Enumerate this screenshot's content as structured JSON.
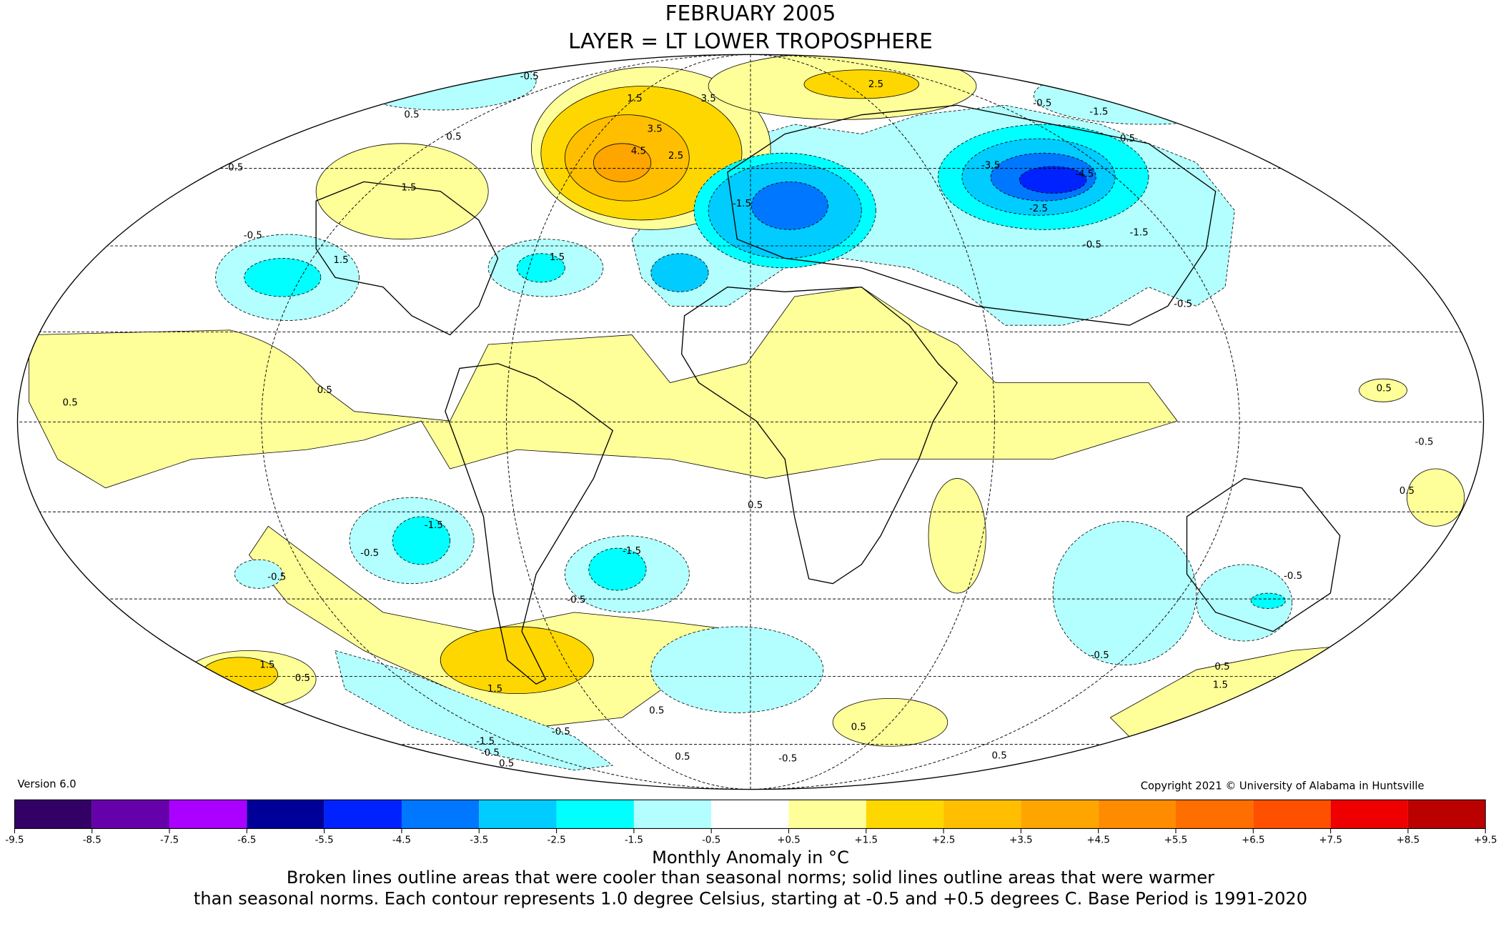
{
  "map": {
    "title": "FEBRUARY 2005",
    "subtitle": "LAYER = LT LOWER TROPOSPHERE",
    "contour_labels": [
      "-0.5",
      "0.5",
      "1.5",
      "2.5",
      "3.5",
      "4.5",
      "3.5",
      "2.5",
      "0.5",
      "0.5",
      "1.5",
      "-0.5",
      "1.5",
      "1.5",
      "-0.5",
      "-1.5",
      "0.5",
      "-2.5",
      "-3.5",
      "-4.5",
      "-1.5",
      "-0.5",
      "-1.5",
      "-0.5",
      "0.5",
      "0.5",
      "0.5",
      "-0.5",
      "0.5",
      "0.5",
      "-1.5",
      "-0.5",
      "-1.5",
      "-0.5",
      "-0.5",
      "-0.5",
      "-0.5",
      "1.5",
      "0.5",
      "1.5",
      "0.5",
      "0.5",
      "1.5",
      "-0.5",
      "-1.5",
      "-0.5",
      "0.5",
      "0.5",
      "-0.5",
      "0.5",
      "0.5"
    ],
    "version": "Version 6.0",
    "copyright": "Copyright 2021 © University of Alabama in Huntsville"
  },
  "colorbar": {
    "label": "Monthly Anomaly in °C",
    "ticks": [
      -9.5,
      -8.5,
      -7.5,
      -6.5,
      -5.5,
      -4.5,
      -3.5,
      -2.5,
      -1.5,
      -0.5,
      {
        "value": 0.5,
        "label": "+0.5"
      },
      {
        "value": 1.5,
        "label": "+1.5"
      },
      {
        "value": 2.5,
        "label": "+2.5"
      },
      {
        "value": 3.5,
        "label": "+3.5"
      },
      {
        "value": 4.5,
        "label": "+4.5"
      },
      {
        "value": 5.5,
        "label": "+5.5"
      },
      {
        "value": 6.5,
        "label": "+6.5"
      },
      {
        "value": 7.5,
        "label": "+7.5"
      },
      {
        "value": 8.5,
        "label": "+8.5"
      },
      {
        "value": 9.5,
        "label": "+9.5"
      }
    ],
    "colors": [
      "#330066",
      "#6600aa",
      "#aa00ff",
      "#000099",
      "#0022ff",
      "#0077ff",
      "#00ccff",
      "#00ffff",
      "#b3ffff",
      "#ffffff",
      "#ffff99",
      "#ffd700",
      "#ffbf00",
      "#ffa500",
      "#ff8c00",
      "#ff6e00",
      "#ff5000",
      "#ee0000",
      "#bb0000"
    ]
  },
  "caption": {
    "line1": "Broken lines outline areas that were cooler than seasonal norms; solid lines outline areas that were warmer",
    "line2": "than seasonal norms. Each contour represents 1.0 degree Celsius, starting at -0.5 and +0.5 degrees C. Base Period is 1991-2020"
  }
}
